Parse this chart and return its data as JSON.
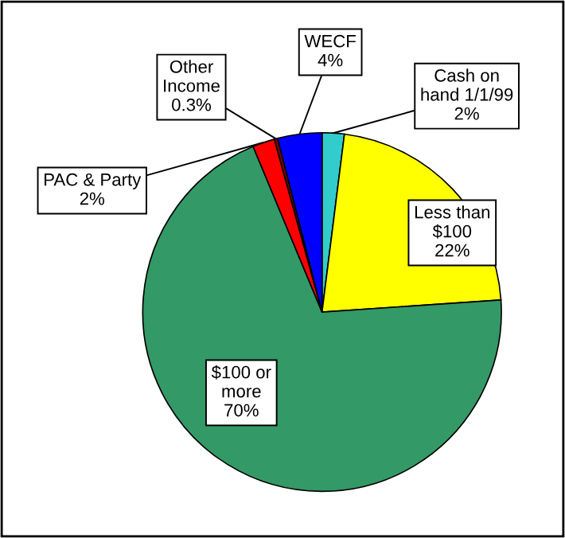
{
  "chart_data": {
    "type": "pie",
    "categories": [
      "Cash on hand 1/1/99",
      "Less than $100",
      "$100 or more",
      "PAC & Party",
      "Other Income",
      "WECF"
    ],
    "values": [
      2,
      22,
      70,
      2,
      0.3,
      4
    ],
    "value_labels": [
      "2%",
      "22%",
      "70%",
      "2%",
      "0.3%",
      "4%"
    ],
    "colors": [
      "#33cccc",
      "#ffff00",
      "#339966",
      "#ff0000",
      "#800000",
      "#0000ff"
    ]
  }
}
